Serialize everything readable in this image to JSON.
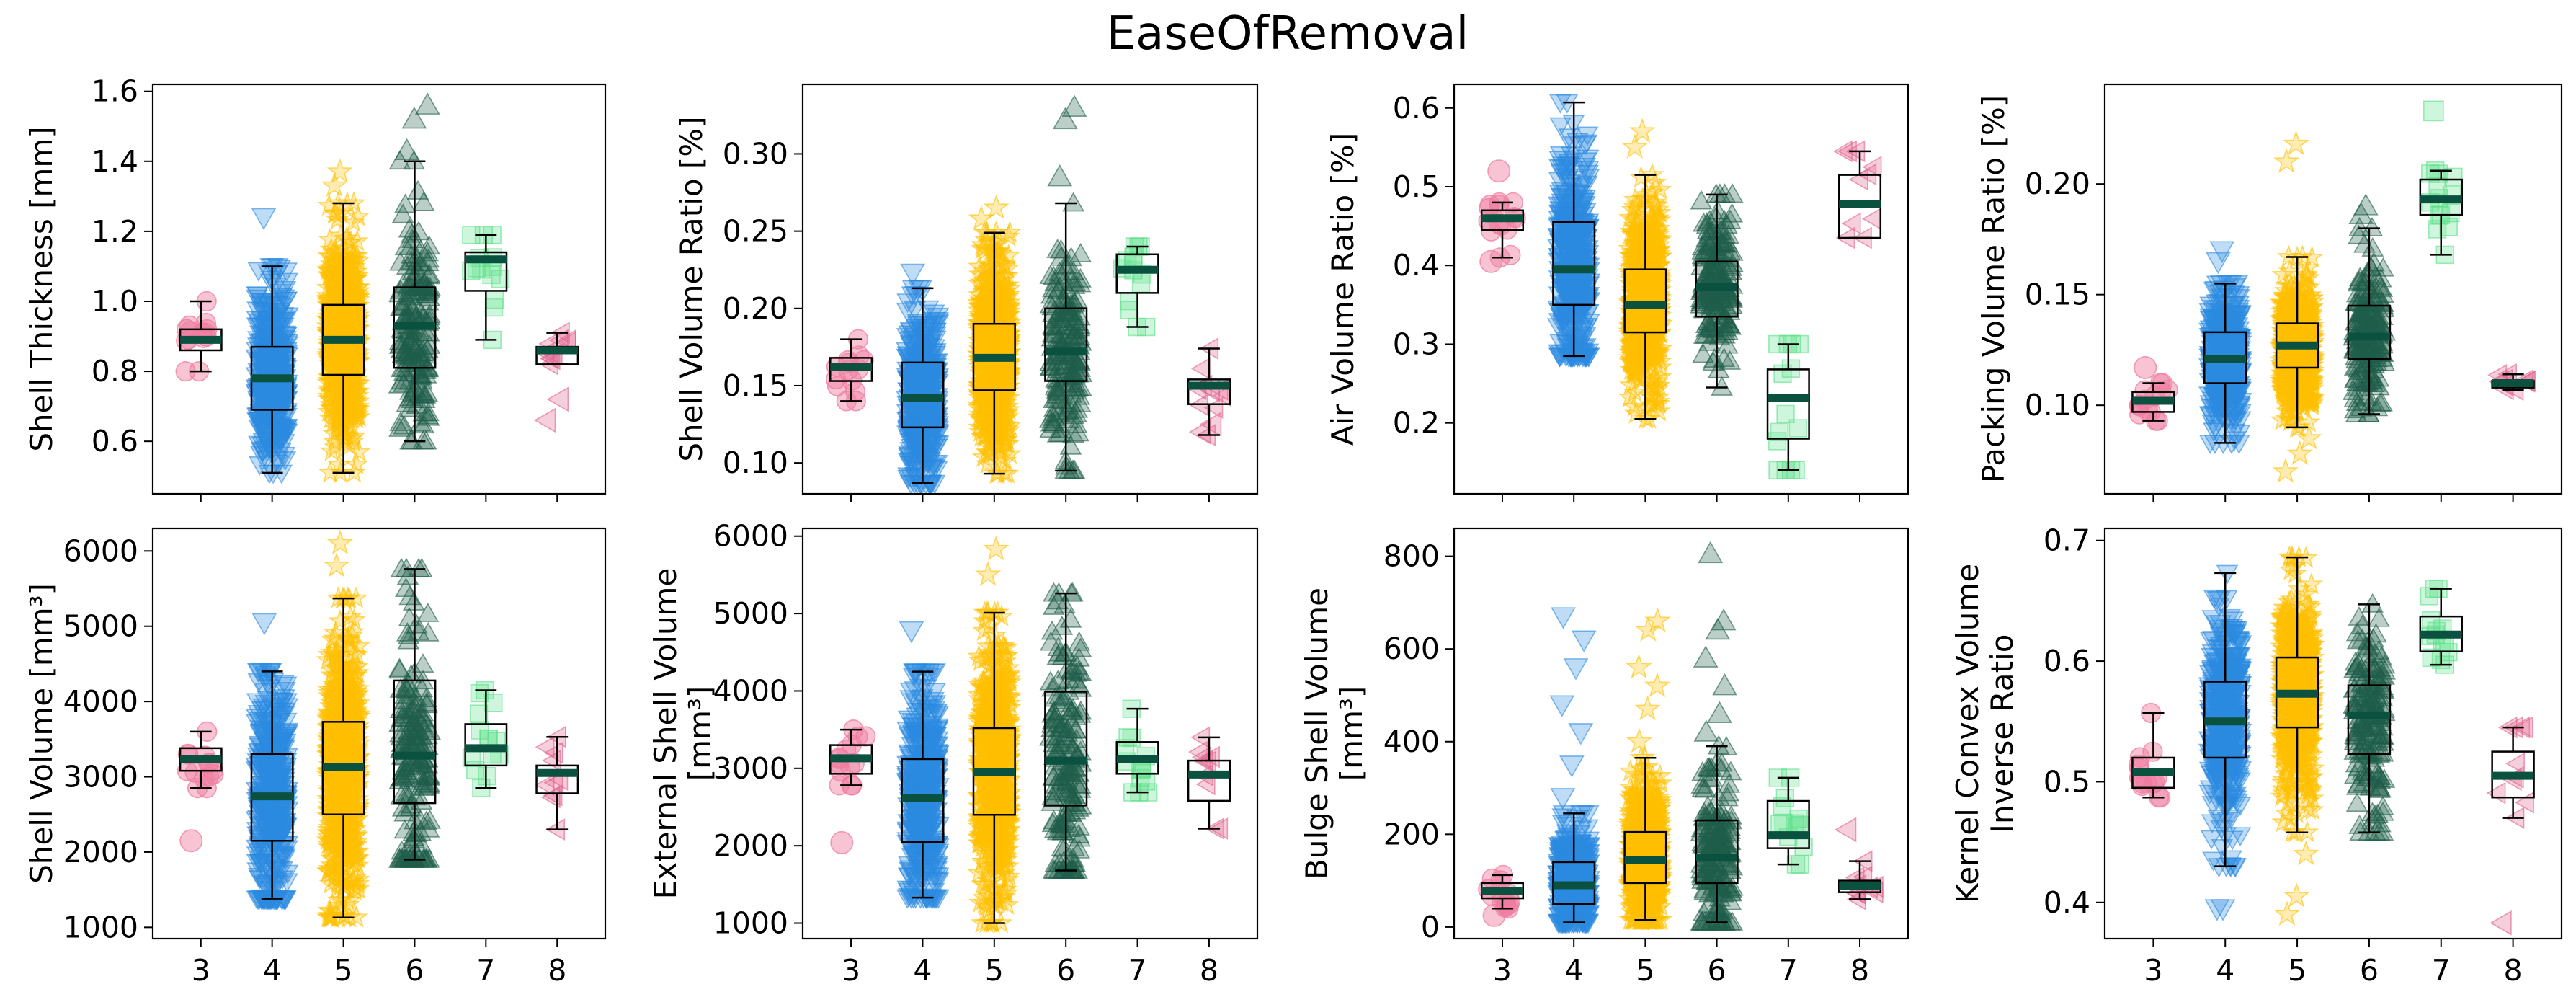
{
  "figure": {
    "title": "EaseOfRemoval"
  },
  "style": {
    "group_colors": {
      "3": "#f07ca0",
      "4": "#2b8be0",
      "5": "#ffc000",
      "6": "#1e5e4a",
      "7": "#5ee08a",
      "8": "#e0608a"
    },
    "group_markers": {
      "3": "circle",
      "4": "triangle-down",
      "5": "star",
      "6": "triangle-up",
      "7": "square",
      "8": "triangle-left"
    },
    "median_color": "#0b5140",
    "box_edge_color": "#000000"
  },
  "chart_data": [
    {
      "id": "p0",
      "type": "box",
      "ylabel": [
        "Shell Thickness [mm]"
      ],
      "categories": [
        "3",
        "4",
        "5",
        "6",
        "7",
        "8"
      ],
      "ylim": [
        0.45,
        1.62
      ],
      "yticks": [
        0.6,
        0.8,
        1.0,
        1.2,
        1.4,
        1.6
      ],
      "ytick_labels": [
        "0.6",
        "0.8",
        "1.0",
        "1.2",
        "1.4",
        "1.6"
      ],
      "show_xtick_labels": false,
      "boxes": [
        {
          "group": "3",
          "whislo": 0.8,
          "q1": 0.86,
          "median": 0.89,
          "q3": 0.92,
          "whishi": 1.0,
          "n": 12,
          "outliers": []
        },
        {
          "group": "4",
          "whislo": 0.51,
          "q1": 0.69,
          "median": 0.78,
          "q3": 0.87,
          "whishi": 1.1,
          "n": 400,
          "outliers": [
            1.24
          ]
        },
        {
          "group": "5",
          "whislo": 0.51,
          "q1": 0.79,
          "median": 0.89,
          "q3": 0.99,
          "whishi": 1.28,
          "n": 650,
          "outliers": [
            1.33,
            1.37
          ]
        },
        {
          "group": "6",
          "whislo": 0.6,
          "q1": 0.81,
          "median": 0.93,
          "q3": 1.04,
          "whishi": 1.4,
          "n": 170,
          "outliers": [
            1.43,
            1.52,
            1.56
          ]
        },
        {
          "group": "7",
          "whislo": 0.89,
          "q1": 1.03,
          "median": 1.12,
          "q3": 1.14,
          "whishi": 1.19,
          "n": 12,
          "outliers": []
        },
        {
          "group": "8",
          "whislo": 0.82,
          "q1": 0.82,
          "median": 0.86,
          "q3": 0.87,
          "whishi": 0.91,
          "n": 8,
          "outliers": [
            0.66,
            0.72
          ]
        }
      ]
    },
    {
      "id": "p1",
      "type": "box",
      "ylabel": [
        "Shell Volume Ratio [%]"
      ],
      "categories": [
        "3",
        "4",
        "5",
        "6",
        "7",
        "8"
      ],
      "ylim": [
        0.08,
        0.345
      ],
      "yticks": [
        0.1,
        0.15,
        0.2,
        0.25,
        0.3
      ],
      "ytick_labels": [
        "0.10",
        "0.15",
        "0.20",
        "0.25",
        "0.30"
      ],
      "show_xtick_labels": false,
      "boxes": [
        {
          "group": "3",
          "whislo": 0.14,
          "q1": 0.153,
          "median": 0.162,
          "q3": 0.168,
          "whishi": 0.18,
          "n": 12,
          "outliers": []
        },
        {
          "group": "4",
          "whislo": 0.087,
          "q1": 0.123,
          "median": 0.142,
          "q3": 0.165,
          "whishi": 0.213,
          "n": 400,
          "outliers": [
            0.223
          ]
        },
        {
          "group": "5",
          "whislo": 0.093,
          "q1": 0.147,
          "median": 0.168,
          "q3": 0.19,
          "whishi": 0.249,
          "n": 650,
          "outliers": [
            0.258,
            0.265
          ]
        },
        {
          "group": "6",
          "whislo": 0.095,
          "q1": 0.153,
          "median": 0.172,
          "q3": 0.2,
          "whishi": 0.268,
          "n": 170,
          "outliers": [
            0.285,
            0.322,
            0.33
          ]
        },
        {
          "group": "7",
          "whislo": 0.188,
          "q1": 0.21,
          "median": 0.225,
          "q3": 0.235,
          "whishi": 0.24,
          "n": 12,
          "outliers": []
        },
        {
          "group": "8",
          "whislo": 0.118,
          "q1": 0.138,
          "median": 0.15,
          "q3": 0.154,
          "whishi": 0.174,
          "n": 8,
          "outliers": [
            0.12,
            0.125
          ]
        }
      ]
    },
    {
      "id": "p2",
      "type": "box",
      "ylabel": [
        "Air Volume Ratio [%]"
      ],
      "categories": [
        "3",
        "4",
        "5",
        "6",
        "7",
        "8"
      ],
      "ylim": [
        0.11,
        0.63
      ],
      "yticks": [
        0.2,
        0.3,
        0.4,
        0.5,
        0.6
      ],
      "ytick_labels": [
        "0.2",
        "0.3",
        "0.4",
        "0.5",
        "0.6"
      ],
      "show_xtick_labels": false,
      "boxes": [
        {
          "group": "3",
          "whislo": 0.41,
          "q1": 0.445,
          "median": 0.46,
          "q3": 0.47,
          "whishi": 0.48,
          "n": 12,
          "outliers": [
            0.405,
            0.52
          ]
        },
        {
          "group": "4",
          "whislo": 0.285,
          "q1": 0.35,
          "median": 0.395,
          "q3": 0.455,
          "whishi": 0.607,
          "n": 400,
          "outliers": []
        },
        {
          "group": "5",
          "whislo": 0.205,
          "q1": 0.315,
          "median": 0.35,
          "q3": 0.395,
          "whishi": 0.515,
          "n": 650,
          "outliers": [
            0.55,
            0.57
          ]
        },
        {
          "group": "6",
          "whislo": 0.245,
          "q1": 0.335,
          "median": 0.373,
          "q3": 0.405,
          "whishi": 0.49,
          "n": 170,
          "outliers": []
        },
        {
          "group": "7",
          "whislo": 0.14,
          "q1": 0.18,
          "median": 0.232,
          "q3": 0.268,
          "whishi": 0.3,
          "n": 12,
          "outliers": []
        },
        {
          "group": "8",
          "whislo": 0.435,
          "q1": 0.435,
          "median": 0.478,
          "q3": 0.515,
          "whishi": 0.545,
          "n": 8,
          "outliers": []
        }
      ]
    },
    {
      "id": "p3",
      "type": "box",
      "ylabel": [
        "Packing Volume Ratio [%]"
      ],
      "categories": [
        "3",
        "4",
        "5",
        "6",
        "7",
        "8"
      ],
      "ylim": [
        0.06,
        0.245
      ],
      "yticks": [
        0.1,
        0.15,
        0.2
      ],
      "ytick_labels": [
        "0.10",
        "0.15",
        "0.20"
      ],
      "show_xtick_labels": false,
      "boxes": [
        {
          "group": "3",
          "whislo": 0.093,
          "q1": 0.097,
          "median": 0.102,
          "q3": 0.106,
          "whishi": 0.11,
          "n": 12,
          "outliers": [
            0.117
          ]
        },
        {
          "group": "4",
          "whislo": 0.083,
          "q1": 0.11,
          "median": 0.121,
          "q3": 0.133,
          "whishi": 0.155,
          "n": 400,
          "outliers": [
            0.165,
            0.17
          ]
        },
        {
          "group": "5",
          "whislo": 0.09,
          "q1": 0.117,
          "median": 0.127,
          "q3": 0.137,
          "whishi": 0.167,
          "n": 650,
          "outliers": [
            0.07,
            0.078,
            0.085,
            0.21,
            0.218
          ]
        },
        {
          "group": "6",
          "whislo": 0.096,
          "q1": 0.121,
          "median": 0.131,
          "q3": 0.145,
          "whishi": 0.18,
          "n": 170,
          "outliers": [
            0.186,
            0.19
          ]
        },
        {
          "group": "7",
          "whislo": 0.168,
          "q1": 0.186,
          "median": 0.193,
          "q3": 0.202,
          "whishi": 0.206,
          "n": 12,
          "outliers": [
            0.233
          ]
        },
        {
          "group": "8",
          "whislo": 0.107,
          "q1": 0.108,
          "median": 0.11,
          "q3": 0.111,
          "whishi": 0.114,
          "n": 8,
          "outliers": []
        }
      ]
    },
    {
      "id": "p4",
      "type": "box",
      "ylabel": [
        "Shell Volume [mm³]"
      ],
      "categories": [
        "3",
        "4",
        "5",
        "6",
        "7",
        "8"
      ],
      "ylim": [
        850,
        6300
      ],
      "yticks": [
        1000,
        2000,
        3000,
        4000,
        5000,
        6000
      ],
      "ytick_labels": [
        "1000",
        "2000",
        "3000",
        "4000",
        "5000",
        "6000"
      ],
      "show_xtick_labels": true,
      "boxes": [
        {
          "group": "3",
          "whislo": 2850,
          "q1": 3080,
          "median": 3230,
          "q3": 3380,
          "whishi": 3600,
          "n": 12,
          "outliers": [
            2150
          ]
        },
        {
          "group": "4",
          "whislo": 1380,
          "q1": 2150,
          "median": 2740,
          "q3": 3300,
          "whishi": 4400,
          "n": 400,
          "outliers": [
            5050
          ]
        },
        {
          "group": "5",
          "whislo": 1130,
          "q1": 2500,
          "median": 3130,
          "q3": 3730,
          "whishi": 5370,
          "n": 650,
          "outliers": [
            5800,
            6100
          ]
        },
        {
          "group": "6",
          "whislo": 1900,
          "q1": 2650,
          "median": 3280,
          "q3": 4280,
          "whishi": 5760,
          "n": 170,
          "outliers": []
        },
        {
          "group": "7",
          "whislo": 2850,
          "q1": 3150,
          "median": 3380,
          "q3": 3700,
          "whishi": 4150,
          "n": 12,
          "outliers": []
        },
        {
          "group": "8",
          "whislo": 2300,
          "q1": 2780,
          "median": 3050,
          "q3": 3150,
          "whishi": 3530,
          "n": 8,
          "outliers": []
        }
      ]
    },
    {
      "id": "p5",
      "type": "box",
      "ylabel": [
        "External Shell Volume",
        "[mm³]"
      ],
      "categories": [
        "3",
        "4",
        "5",
        "6",
        "7",
        "8"
      ],
      "ylim": [
        800,
        6100
      ],
      "yticks": [
        1000,
        2000,
        3000,
        4000,
        5000,
        6000
      ],
      "ytick_labels": [
        "1000",
        "2000",
        "3000",
        "4000",
        "5000",
        "6000"
      ],
      "show_xtick_labels": true,
      "boxes": [
        {
          "group": "3",
          "whislo": 2780,
          "q1": 2930,
          "median": 3130,
          "q3": 3300,
          "whishi": 3500,
          "n": 12,
          "outliers": [
            2040
          ]
        },
        {
          "group": "4",
          "whislo": 1330,
          "q1": 2050,
          "median": 2620,
          "q3": 3120,
          "whishi": 4250,
          "n": 400,
          "outliers": [
            4780
          ]
        },
        {
          "group": "5",
          "whislo": 1000,
          "q1": 2400,
          "median": 2950,
          "q3": 3520,
          "whishi": 5010,
          "n": 650,
          "outliers": [
            5500,
            5830
          ]
        },
        {
          "group": "6",
          "whislo": 1680,
          "q1": 2520,
          "median": 3100,
          "q3": 3990,
          "whishi": 5260,
          "n": 170,
          "outliers": []
        },
        {
          "group": "7",
          "whislo": 2690,
          "q1": 2930,
          "median": 3120,
          "q3": 3340,
          "whishi": 3770,
          "n": 12,
          "outliers": []
        },
        {
          "group": "8",
          "whislo": 2220,
          "q1": 2580,
          "median": 2920,
          "q3": 3100,
          "whishi": 3400,
          "n": 8,
          "outliers": []
        }
      ]
    },
    {
      "id": "p6",
      "type": "box",
      "ylabel": [
        "Bulge Shell Volume",
        "[mm³]"
      ],
      "categories": [
        "3",
        "4",
        "5",
        "6",
        "7",
        "8"
      ],
      "ylim": [
        -25,
        860
      ],
      "yticks": [
        0,
        200,
        400,
        600,
        800
      ],
      "ytick_labels": [
        "0",
        "200",
        "400",
        "600",
        "800"
      ],
      "show_xtick_labels": true,
      "boxes": [
        {
          "group": "3",
          "whislo": 40,
          "q1": 62,
          "median": 78,
          "q3": 95,
          "whishi": 112,
          "n": 12,
          "outliers": [
            25
          ]
        },
        {
          "group": "4",
          "whislo": 10,
          "q1": 50,
          "median": 90,
          "q3": 140,
          "whishi": 245,
          "n": 400,
          "outliers": [
            280,
            350,
            420,
            480,
            560,
            620,
            670
          ]
        },
        {
          "group": "5",
          "whislo": 15,
          "q1": 95,
          "median": 145,
          "q3": 205,
          "whishi": 365,
          "n": 650,
          "outliers": [
            400,
            470,
            520,
            560,
            640,
            660
          ]
        },
        {
          "group": "6",
          "whislo": 10,
          "q1": 95,
          "median": 150,
          "q3": 230,
          "whishi": 390,
          "n": 170,
          "outliers": [
            420,
            460,
            520,
            580,
            640,
            660,
            805
          ]
        },
        {
          "group": "7",
          "whislo": 135,
          "q1": 170,
          "median": 198,
          "q3": 272,
          "whishi": 322,
          "n": 12,
          "outliers": []
        },
        {
          "group": "8",
          "whislo": 60,
          "q1": 75,
          "median": 88,
          "q3": 100,
          "whishi": 142,
          "n": 8,
          "outliers": [
            210
          ]
        }
      ]
    },
    {
      "id": "p7",
      "type": "box",
      "ylabel": [
        "Kernel Convex Volume",
        "Inverse Ratio"
      ],
      "categories": [
        "3",
        "4",
        "5",
        "6",
        "7",
        "8"
      ],
      "ylim": [
        0.37,
        0.71
      ],
      "yticks": [
        0.4,
        0.5,
        0.6,
        0.7
      ],
      "ytick_labels": [
        "0.4",
        "0.5",
        "0.6",
        "0.7"
      ],
      "show_xtick_labels": true,
      "boxes": [
        {
          "group": "3",
          "whislo": 0.487,
          "q1": 0.495,
          "median": 0.508,
          "q3": 0.52,
          "whishi": 0.557,
          "n": 12,
          "outliers": []
        },
        {
          "group": "4",
          "whislo": 0.43,
          "q1": 0.52,
          "median": 0.55,
          "q3": 0.583,
          "whishi": 0.673,
          "n": 400,
          "outliers": [
            0.395,
            0.395
          ]
        },
        {
          "group": "5",
          "whislo": 0.458,
          "q1": 0.545,
          "median": 0.573,
          "q3": 0.603,
          "whishi": 0.686,
          "n": 650,
          "outliers": [
            0.39,
            0.405,
            0.44
          ]
        },
        {
          "group": "6",
          "whislo": 0.458,
          "q1": 0.523,
          "median": 0.555,
          "q3": 0.58,
          "whishi": 0.647,
          "n": 170,
          "outliers": []
        },
        {
          "group": "7",
          "whislo": 0.597,
          "q1": 0.608,
          "median": 0.622,
          "q3": 0.637,
          "whishi": 0.66,
          "n": 12,
          "outliers": []
        },
        {
          "group": "8",
          "whislo": 0.47,
          "q1": 0.487,
          "median": 0.505,
          "q3": 0.525,
          "whishi": 0.545,
          "n": 8,
          "outliers": [
            0.383
          ]
        }
      ]
    }
  ]
}
